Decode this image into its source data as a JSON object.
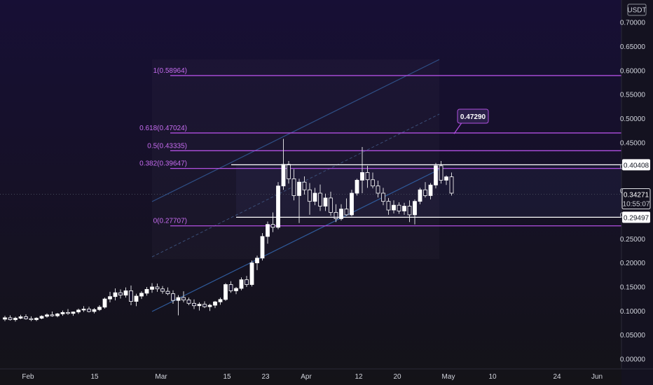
{
  "chart_data": {
    "type": "candlestick",
    "currency": "USDT",
    "ylim": [
      0,
      0.72
    ],
    "y_ticks": [
      "0.70000",
      "0.65000",
      "0.60000",
      "0.55000",
      "0.50000",
      "0.45000",
      "0.40000",
      "0.35000",
      "0.30000",
      "0.25000",
      "0.20000",
      "0.15000",
      "0.10000",
      "0.05000",
      "0.00000"
    ],
    "x_ticks": [
      "Feb",
      "15",
      "Mar",
      "15",
      "23",
      "Apr",
      "12",
      "20",
      "May",
      "10",
      "24",
      "Jun"
    ],
    "fib_levels": [
      {
        "label": "1(0.58964)",
        "value": 0.58964
      },
      {
        "label": "0.618(0.47024)",
        "value": 0.47024
      },
      {
        "label": "0.5(0.43335)",
        "value": 0.43335
      },
      {
        "label": "0.382(0.39647)",
        "value": 0.39647
      },
      {
        "label": "0(0.27707)",
        "value": 0.27707
      }
    ],
    "price_tags": [
      {
        "text": "0.40408",
        "value": 0.40408,
        "style": "outline"
      },
      {
        "text": "0.34271",
        "value": 0.34271,
        "style": "solid",
        "countdown": "10:55:07"
      },
      {
        "text": "0.29497",
        "value": 0.29497,
        "style": "outline"
      }
    ],
    "annotation": {
      "text": "0.47290",
      "value": 0.4729
    },
    "candles": [
      [
        0.083,
        0.09,
        0.079,
        0.086
      ],
      [
        0.086,
        0.091,
        0.08,
        0.082
      ],
      [
        0.082,
        0.088,
        0.078,
        0.085
      ],
      [
        0.085,
        0.092,
        0.083,
        0.088
      ],
      [
        0.088,
        0.093,
        0.082,
        0.084
      ],
      [
        0.084,
        0.089,
        0.079,
        0.082
      ],
      [
        0.082,
        0.087,
        0.079,
        0.085
      ],
      [
        0.085,
        0.091,
        0.083,
        0.089
      ],
      [
        0.089,
        0.095,
        0.086,
        0.092
      ],
      [
        0.092,
        0.099,
        0.088,
        0.09
      ],
      [
        0.09,
        0.096,
        0.087,
        0.094
      ],
      [
        0.094,
        0.101,
        0.09,
        0.097
      ],
      [
        0.097,
        0.104,
        0.092,
        0.095
      ],
      [
        0.095,
        0.099,
        0.09,
        0.098
      ],
      [
        0.098,
        0.105,
        0.094,
        0.102
      ],
      [
        0.102,
        0.11,
        0.098,
        0.104
      ],
      [
        0.104,
        0.109,
        0.097,
        0.099
      ],
      [
        0.099,
        0.106,
        0.095,
        0.103
      ],
      [
        0.103,
        0.112,
        0.1,
        0.108
      ],
      [
        0.108,
        0.128,
        0.105,
        0.125
      ],
      [
        0.125,
        0.14,
        0.118,
        0.13
      ],
      [
        0.13,
        0.147,
        0.122,
        0.138
      ],
      [
        0.138,
        0.145,
        0.126,
        0.133
      ],
      [
        0.133,
        0.149,
        0.128,
        0.142
      ],
      [
        0.142,
        0.153,
        0.112,
        0.12
      ],
      [
        0.12,
        0.136,
        0.11,
        0.131
      ],
      [
        0.131,
        0.141,
        0.125,
        0.137
      ],
      [
        0.137,
        0.15,
        0.132,
        0.145
      ],
      [
        0.145,
        0.158,
        0.138,
        0.15
      ],
      [
        0.15,
        0.157,
        0.14,
        0.146
      ],
      [
        0.146,
        0.152,
        0.136,
        0.141
      ],
      [
        0.141,
        0.149,
        0.133,
        0.136
      ],
      [
        0.136,
        0.143,
        0.115,
        0.122
      ],
      [
        0.122,
        0.133,
        0.091,
        0.128
      ],
      [
        0.128,
        0.141,
        0.118,
        0.123
      ],
      [
        0.123,
        0.128,
        0.112,
        0.116
      ],
      [
        0.116,
        0.124,
        0.104,
        0.111
      ],
      [
        0.111,
        0.118,
        0.101,
        0.114
      ],
      [
        0.114,
        0.12,
        0.106,
        0.109
      ],
      [
        0.109,
        0.115,
        0.1,
        0.112
      ],
      [
        0.112,
        0.121,
        0.106,
        0.119
      ],
      [
        0.119,
        0.128,
        0.113,
        0.124
      ],
      [
        0.124,
        0.158,
        0.121,
        0.155
      ],
      [
        0.155,
        0.162,
        0.138,
        0.142
      ],
      [
        0.142,
        0.15,
        0.135,
        0.147
      ],
      [
        0.147,
        0.17,
        0.143,
        0.165
      ],
      [
        0.165,
        0.173,
        0.15,
        0.155
      ],
      [
        0.155,
        0.205,
        0.151,
        0.2
      ],
      [
        0.2,
        0.215,
        0.185,
        0.21
      ],
      [
        0.21,
        0.262,
        0.205,
        0.255
      ],
      [
        0.255,
        0.286,
        0.24,
        0.28
      ],
      [
        0.28,
        0.305,
        0.264,
        0.274
      ],
      [
        0.274,
        0.368,
        0.27,
        0.36
      ],
      [
        0.36,
        0.458,
        0.352,
        0.405
      ],
      [
        0.405,
        0.412,
        0.365,
        0.375
      ],
      [
        0.375,
        0.395,
        0.33,
        0.34
      ],
      [
        0.34,
        0.375,
        0.283,
        0.368
      ],
      [
        0.368,
        0.38,
        0.342,
        0.352
      ],
      [
        0.352,
        0.366,
        0.3,
        0.328
      ],
      [
        0.328,
        0.356,
        0.32,
        0.345
      ],
      [
        0.345,
        0.363,
        0.308,
        0.318
      ],
      [
        0.318,
        0.344,
        0.308,
        0.335
      ],
      [
        0.335,
        0.348,
        0.298,
        0.305
      ],
      [
        0.305,
        0.322,
        0.285,
        0.292
      ],
      [
        0.292,
        0.322,
        0.288,
        0.312
      ],
      [
        0.312,
        0.334,
        0.298,
        0.3
      ],
      [
        0.3,
        0.352,
        0.297,
        0.345
      ],
      [
        0.345,
        0.375,
        0.34,
        0.372
      ],
      [
        0.372,
        0.441,
        0.345,
        0.388
      ],
      [
        0.388,
        0.402,
        0.356,
        0.373
      ],
      [
        0.373,
        0.388,
        0.355,
        0.36
      ],
      [
        0.36,
        0.371,
        0.336,
        0.345
      ],
      [
        0.345,
        0.356,
        0.32,
        0.328
      ],
      [
        0.328,
        0.335,
        0.3,
        0.31
      ],
      [
        0.31,
        0.33,
        0.303,
        0.32
      ],
      [
        0.32,
        0.326,
        0.302,
        0.308
      ],
      [
        0.308,
        0.325,
        0.3,
        0.318
      ],
      [
        0.318,
        0.33,
        0.285,
        0.3
      ],
      [
        0.3,
        0.332,
        0.28,
        0.328
      ],
      [
        0.328,
        0.356,
        0.322,
        0.352
      ],
      [
        0.352,
        0.368,
        0.336,
        0.34
      ],
      [
        0.34,
        0.366,
        0.332,
        0.362
      ],
      [
        0.362,
        0.408,
        0.355,
        0.402
      ],
      [
        0.402,
        0.412,
        0.365,
        0.372
      ],
      [
        0.372,
        0.382,
        0.362,
        0.379
      ],
      [
        0.379,
        0.388,
        0.34,
        0.345
      ]
    ]
  }
}
